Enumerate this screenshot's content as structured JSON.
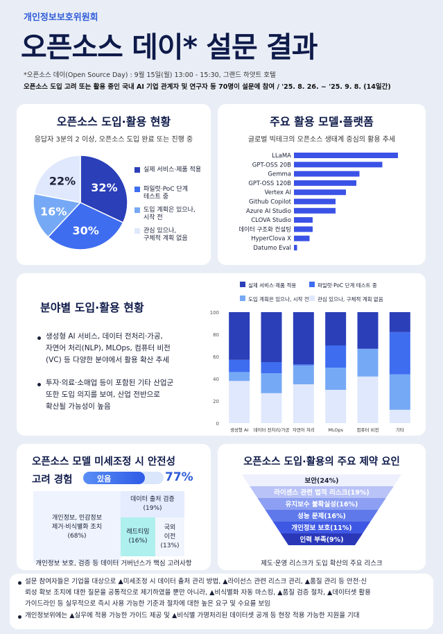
{
  "header": {
    "org": "개인정보보호위원회",
    "title": "오픈소스 데이* 설문 결과",
    "event_note": "*오픈소스 데이(Open Source Day) : 9월 15일(월) 13:00 - 15:30, 그랜드 하얏트 호텔",
    "survey_note": "오픈소스 도입 고려 또는 활용 중인 국내 AI 기업 관계자 및 연구자 등 70명이 설문에 참여 / '25. 8. 26. ~ '25. 9. 8. (14일간)"
  },
  "adoption": {
    "title": "오픈소스 도입·활용 현황",
    "subtitle": "응답자 3분의 2 이상, 오픈소스 도입 완료 또는 진행 중"
  },
  "models": {
    "title": "주요 활용 모델·플랫폼",
    "subtitle": "글로벌 빅테크의 오픈소스 생태계 중심의 활용 추세"
  },
  "sector": {
    "title": "분야별 도입·활용 현황",
    "bullets": [
      "생성형 AI 서비스, 데이터 전처리·가공,",
      "자연어 처리(NLP), MLOps, 컴퓨터 비전",
      "(VC) 등 다양한 분야에서 활용 확산 추세",
      "투자·의료·소매업 등이 포함된 기타 산업군",
      "또한 도입 의지를 보여, 산업 전반으로",
      "확산될 가능성이 높음"
    ]
  },
  "safety": {
    "title": "오픈소스 모델 미세조정 시 안전성",
    "title2": "고려 경험",
    "yes_label": "있음",
    "yes_value": "77%",
    "yes_fraction": 0.77,
    "cells": [
      {
        "label": "개인정보, 민감정보\n제거·비식별화 조치",
        "value": "(68%)"
      },
      {
        "label": "데이터 출처 검증",
        "value": "(19%)"
      },
      {
        "label": "레드티밍",
        "value": "(16%)"
      },
      {
        "label": "국외\n이전",
        "value": "(13%)"
      }
    ],
    "caption": "개인정보 보호, 검증 등 데이터 거버넌스가 핵심 고려사항"
  },
  "constraints": {
    "title": "오픈소스 도입·활용의 주요 제약 요인",
    "levels": [
      "보안(24%)",
      "라이센스 관련 법적 리스크(19%)",
      "유지보수 불확실성(16%)",
      "성능 문제(16%)",
      "개인정보 보호(11%)",
      "인력 부족(9%)"
    ],
    "caption": "제도·운영 리스크가 도입 확산의 주요 리스크"
  },
  "notes": [
    "설문 참여자들은 기업을 대상으로 ▲미세조정 시 데이터 출처 관리 방법, ▲라이선스 관련 리스크 관리, ▲품질 관리 등 안전·신",
    "뢰성 확보 조치에 대한 질문을 공통적으로 제기하였을 뿐만 아니라, ▲비식별화 자동 마스킹, ▲품질 검증 절차, ▲데이터셋 활용",
    "가이드라인 등 실무적으로 즉시 사용 가능한 기준과 절차에 대한 높은 요구 및 수요를 보임",
    "개인정보위에는 ▲실무에 적용 가능한 가이드 제공 및 ▲비식별 가명처리된 데이터셋 공개 등 현장 적용 가능한 지원을 기대"
  ],
  "colors": {
    "navy": "#2a3fb8",
    "blue": "#3f6df0",
    "sky": "#76a9f5",
    "pale": "#dfe8fc",
    "bar": "#3b52e6"
  },
  "chart_data": [
    {
      "type": "pie",
      "categories": [
        "실제 서비스·제품 적용",
        "파일럿·PoC 단계 테스트 중",
        "도입 계획은 있으나, 시작 전",
        "관심 있으나, 구체적 계획 없음"
      ],
      "values": [
        32,
        30,
        16,
        22
      ],
      "labels": [
        "32%",
        "30%",
        "16%",
        "22%"
      ]
    },
    {
      "type": "bar",
      "orientation": "horizontal",
      "categories": [
        "LLaMA",
        "GPT-OSS 20B",
        "Gemma",
        "GPT-OSS 120B",
        "Vertex AI",
        "Github Copilot",
        "Azure AI Studio",
        "CLOVA Studio",
        "데이터 구조화 컨설팅",
        "HyperClova X",
        "Datumo Eval"
      ],
      "values": [
        100,
        85,
        63,
        60,
        50,
        40,
        40,
        18,
        18,
        15,
        3
      ]
    },
    {
      "type": "bar",
      "stacked": true,
      "categories": [
        "생성형 AI",
        "데이터 전처리/가공",
        "자연어 처리",
        "MLOps",
        "컴퓨터 비전",
        "기타"
      ],
      "ylim": [
        0,
        100
      ],
      "yticks": [
        0,
        20,
        40,
        60,
        80,
        100
      ],
      "legend_position": "top",
      "series": [
        {
          "name": "관심 있으나, 구체적 계획 없음",
          "values": [
            38,
            27,
            35,
            30,
            42,
            12
          ]
        },
        {
          "name": "도입 계획은 있으나, 시작 전",
          "values": [
            8,
            18,
            17,
            20,
            25,
            32
          ]
        },
        {
          "name": "파일럿·PoC 단계 테스트 중",
          "values": [
            11,
            10,
            1,
            20,
            0,
            38
          ]
        },
        {
          "name": "실제 서비스·제품 적용",
          "values": [
            43,
            45,
            47,
            30,
            33,
            18
          ]
        }
      ],
      "legend": [
        "실제 서비스·제품 적용",
        "파일럿·PoC 단계 테스트 중",
        "도입 계획은 있으나, 시작 전",
        "관심 있으나, 구체적 계획 없음"
      ]
    }
  ]
}
